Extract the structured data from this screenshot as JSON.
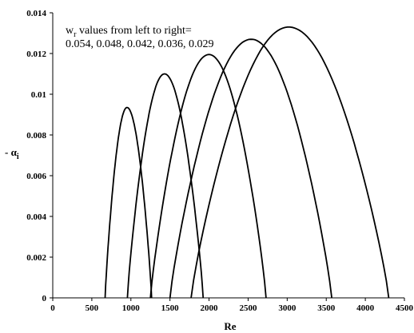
{
  "chart_data": {
    "type": "line",
    "title": "",
    "xlabel": "Re",
    "ylabel_main": "- α",
    "ylabel_sub": "i",
    "xlim": [
      0,
      4500
    ],
    "ylim": [
      0,
      0.014
    ],
    "x_ticks": [
      0,
      500,
      1000,
      1500,
      2000,
      2500,
      3000,
      3500,
      4000,
      4500
    ],
    "y_ticks": [
      0,
      0.002,
      0.004,
      0.006,
      0.008,
      0.01,
      0.012,
      0.014
    ],
    "x_tick_labels": [
      "0",
      "500",
      "1000",
      "1500",
      "2000",
      "2500",
      "3000",
      "3500",
      "4000",
      "4500"
    ],
    "y_tick_labels": [
      "0",
      "0.002",
      "0.004",
      "0.006",
      "0.008",
      "0.01",
      "0.012",
      "0.014"
    ],
    "grid": false,
    "annotation": {
      "line1_main": "w",
      "line1_sub": "r",
      "line1_rest": " values from left to right=",
      "line2": "0.054, 0.048, 0.042, 0.036, 0.029"
    },
    "series": [
      {
        "start": 670,
        "peak_x": 950,
        "peak_y": 0.00935,
        "end": 1265
      },
      {
        "start": 955,
        "peak_x": 1430,
        "peak_y": 0.011,
        "end": 1925
      },
      {
        "start": 1250,
        "peak_x": 2000,
        "peak_y": 0.01195,
        "end": 2730
      },
      {
        "start": 1500,
        "peak_x": 2540,
        "peak_y": 0.0127,
        "end": 3570
      },
      {
        "start": 1770,
        "peak_x": 3020,
        "peak_y": 0.0133,
        "end": 4300
      }
    ]
  }
}
